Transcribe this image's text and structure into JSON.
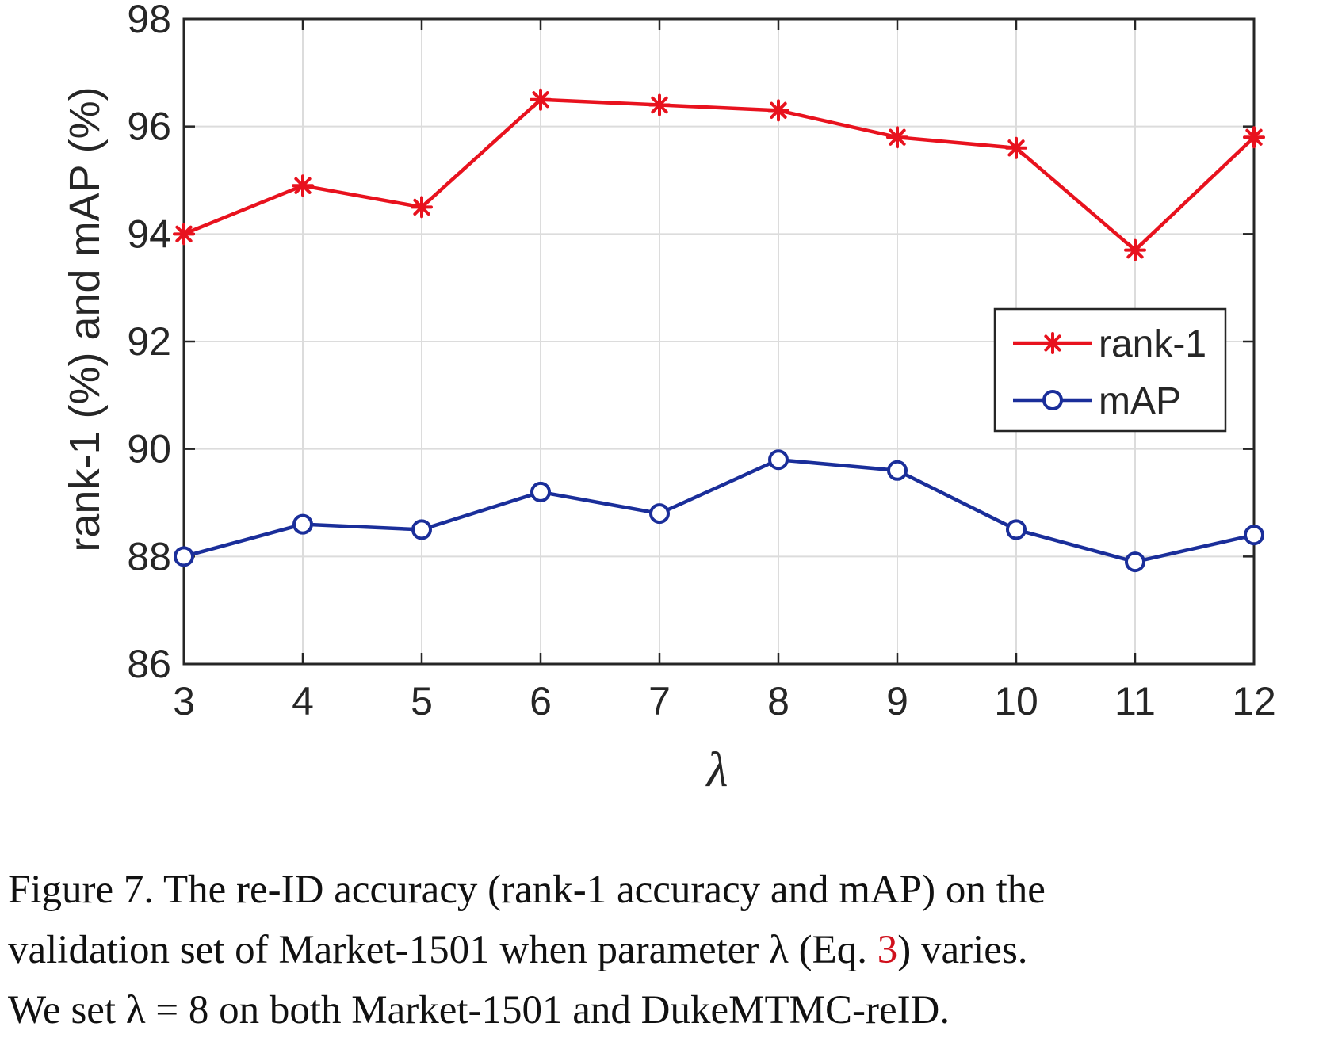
{
  "chart_data": {
    "type": "line",
    "title": "",
    "xlabel": "λ",
    "ylabel": "rank-1 (%) and mAP (%)",
    "x": [
      3,
      4,
      5,
      6,
      7,
      8,
      9,
      10,
      11,
      12
    ],
    "xlim": [
      3,
      12
    ],
    "ylim": [
      86,
      98
    ],
    "yticks": [
      86,
      88,
      90,
      92,
      94,
      96,
      98
    ],
    "grid": true,
    "legend_position": "right, middle",
    "series": [
      {
        "name": "rank-1",
        "marker": "asterisk",
        "color": "#e8121e",
        "values": [
          94.0,
          94.9,
          94.5,
          96.5,
          96.4,
          96.3,
          95.8,
          95.6,
          93.7,
          95.8
        ]
      },
      {
        "name": "mAP",
        "marker": "circle",
        "color": "#1a2e9a",
        "values": [
          88.0,
          88.6,
          88.5,
          89.2,
          88.8,
          89.8,
          89.6,
          88.5,
          87.9,
          88.4
        ]
      }
    ]
  },
  "caption": {
    "line1": "Figure 7.   The re-ID accuracy (rank-1 accuracy and mAP) on the",
    "line2_prefix": "validation set of Market-1501 when parameter λ (Eq. ",
    "line2_ref": "3",
    "line2_suffix": ") varies.",
    "line3": "We set λ = 8 on both Market-1501 and DukeMTMC-reID."
  }
}
